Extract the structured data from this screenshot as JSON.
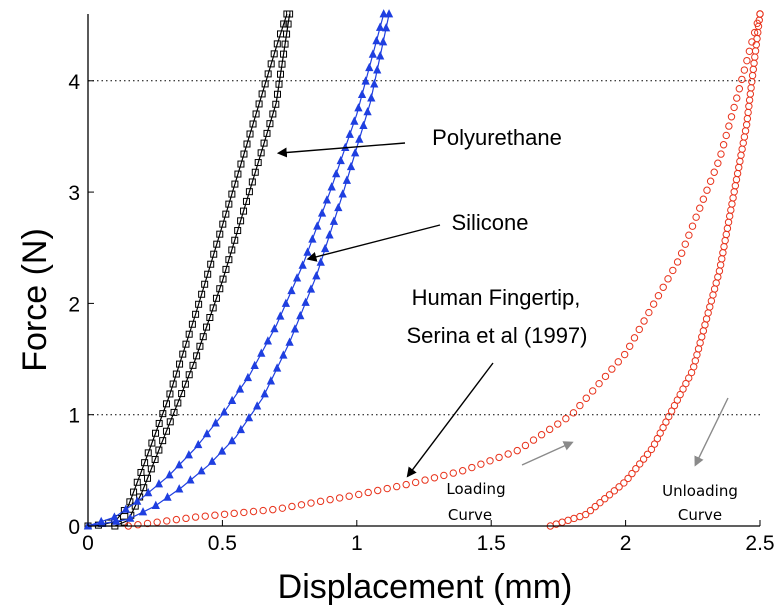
{
  "chart_data": {
    "type": "scatter",
    "xlabel": "Displacement (mm)",
    "ylabel": "Force (N)",
    "xlim": [
      0,
      2.5
    ],
    "ylim": [
      0,
      4.6
    ],
    "xticks": [
      0,
      0.5,
      1,
      1.5,
      2,
      2.5
    ],
    "xtick_labels": [
      "0",
      "0.5",
      "1",
      "1.5",
      "2",
      "2.5"
    ],
    "yticks": [
      0,
      1,
      2,
      3,
      4
    ],
    "ytick_labels": [
      "0",
      "1",
      "2",
      "3",
      "4"
    ],
    "reference_lines_y": [
      1,
      4
    ],
    "grid": false,
    "series": [
      {
        "name": "Polyurethane",
        "color": "#000000",
        "marker": "square",
        "loading": [
          [
            0.0,
            0.0
          ],
          [
            0.05,
            0.01
          ],
          [
            0.1,
            0.04
          ],
          [
            0.15,
            0.18
          ],
          [
            0.2,
            0.5
          ],
          [
            0.3,
            1.15
          ],
          [
            0.4,
            1.9
          ],
          [
            0.5,
            2.7
          ],
          [
            0.6,
            3.5
          ],
          [
            0.7,
            4.3
          ],
          [
            0.74,
            4.6
          ]
        ],
        "unloading": [
          [
            0.75,
            4.6
          ],
          [
            0.7,
            3.8
          ],
          [
            0.6,
            3.0
          ],
          [
            0.5,
            2.2
          ],
          [
            0.4,
            1.5
          ],
          [
            0.3,
            0.9
          ],
          [
            0.2,
            0.3
          ],
          [
            0.15,
            0.05
          ],
          [
            0.1,
            0.0
          ]
        ]
      },
      {
        "name": "Silicone",
        "color": "#1f3fe0",
        "marker": "triangle",
        "loading": [
          [
            0.0,
            0.0
          ],
          [
            0.1,
            0.08
          ],
          [
            0.2,
            0.25
          ],
          [
            0.3,
            0.45
          ],
          [
            0.4,
            0.7
          ],
          [
            0.5,
            1.0
          ],
          [
            0.6,
            1.35
          ],
          [
            0.7,
            1.8
          ],
          [
            0.8,
            2.35
          ],
          [
            0.9,
            3.0
          ],
          [
            1.0,
            3.7
          ],
          [
            1.1,
            4.6
          ]
        ],
        "unloading": [
          [
            1.12,
            4.6
          ],
          [
            1.05,
            3.8
          ],
          [
            0.95,
            3.0
          ],
          [
            0.85,
            2.25
          ],
          [
            0.75,
            1.65
          ],
          [
            0.65,
            1.15
          ],
          [
            0.55,
            0.8
          ],
          [
            0.45,
            0.55
          ],
          [
            0.35,
            0.35
          ],
          [
            0.25,
            0.18
          ],
          [
            0.15,
            0.06
          ],
          [
            0.0,
            0.0
          ]
        ]
      },
      {
        "name": "Human Fingertip, Serina et al (1997)",
        "color": "#e8331c",
        "marker": "circle",
        "loading": [
          [
            0.15,
            0.0
          ],
          [
            0.4,
            0.08
          ],
          [
            0.7,
            0.15
          ],
          [
            1.0,
            0.28
          ],
          [
            1.2,
            0.38
          ],
          [
            1.4,
            0.5
          ],
          [
            1.6,
            0.68
          ],
          [
            1.8,
            1.0
          ],
          [
            2.0,
            1.55
          ],
          [
            2.2,
            2.4
          ],
          [
            2.35,
            3.3
          ],
          [
            2.42,
            3.9
          ],
          [
            2.47,
            4.35
          ],
          [
            2.5,
            4.6
          ]
        ],
        "unloading": [
          [
            2.5,
            4.6
          ],
          [
            2.45,
            3.6
          ],
          [
            2.35,
            2.3
          ],
          [
            2.25,
            1.4
          ],
          [
            2.1,
            0.7
          ],
          [
            2.0,
            0.4
          ],
          [
            1.85,
            0.1
          ],
          [
            1.72,
            0.0
          ]
        ]
      }
    ],
    "annotations": [
      {
        "text": "Polyurethane"
      },
      {
        "text": "Silicone"
      },
      {
        "text": "Human Fingertip,"
      },
      {
        "text": "Serina et al (1997)"
      },
      {
        "text": "Loading"
      },
      {
        "text": "Curve"
      },
      {
        "text": "Unloading"
      },
      {
        "text": "Curve"
      }
    ]
  }
}
